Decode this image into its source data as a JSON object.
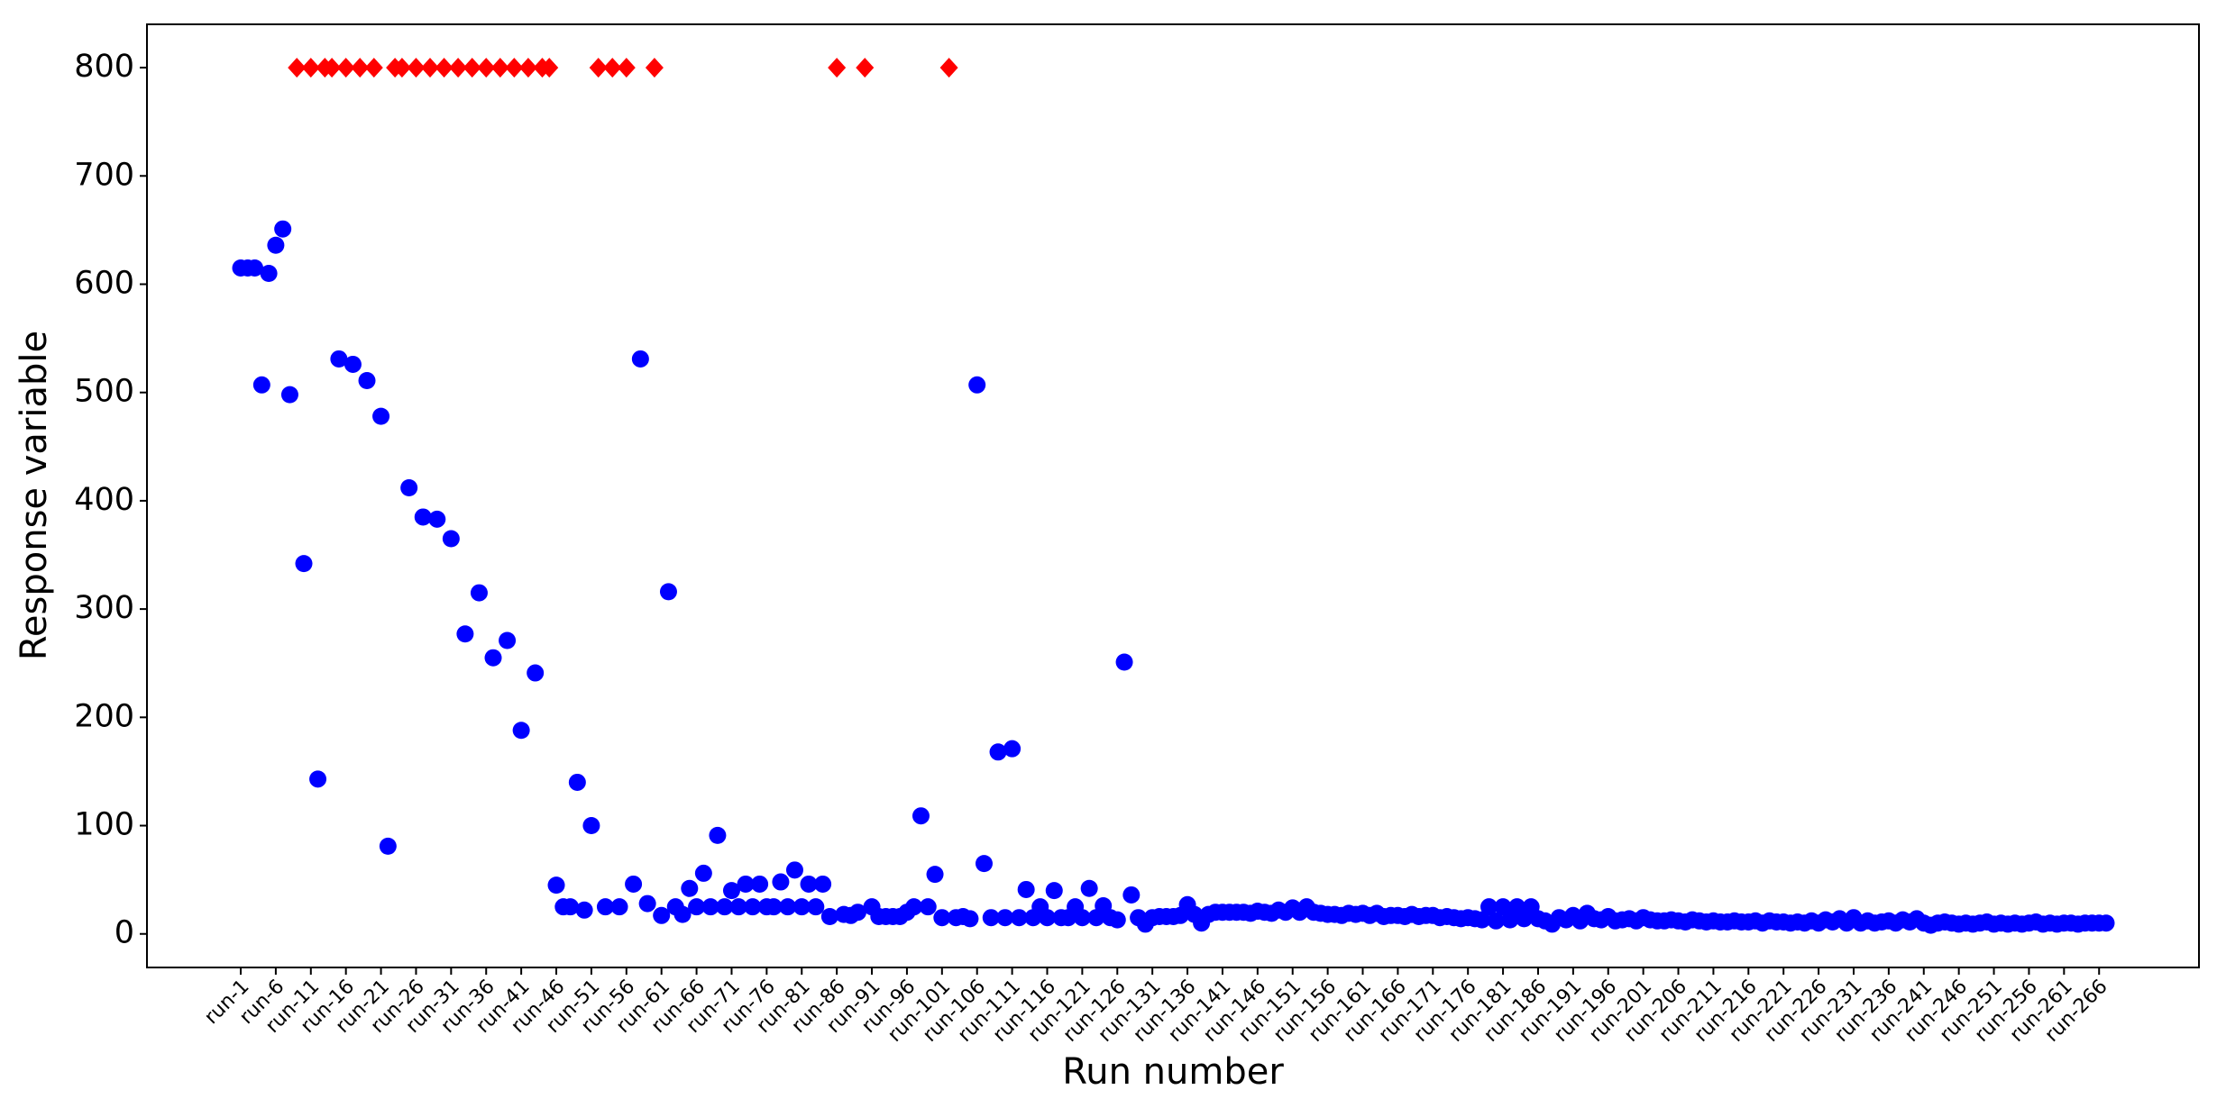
{
  "chart_data": {
    "type": "scatter",
    "xlabel": "Run number",
    "ylabel": "Response variable",
    "categories": [
      "run-1",
      null,
      null,
      null,
      null,
      "run-6",
      null,
      null,
      null,
      null,
      "run-11",
      null,
      null,
      null,
      null,
      "run-16",
      null,
      null,
      null,
      null,
      "run-21",
      null,
      null,
      null,
      null,
      "run-26",
      null,
      null,
      null,
      null,
      "run-31",
      null,
      null,
      null,
      null,
      "run-36",
      null,
      null,
      null,
      null,
      "run-41",
      null,
      null,
      null,
      null,
      "run-46",
      null,
      null,
      null,
      null,
      "run-51",
      null,
      null,
      null,
      null,
      "run-56",
      null,
      null,
      null,
      null,
      "run-61",
      null,
      null,
      null,
      null,
      "run-66",
      null,
      null,
      null,
      null,
      "run-71",
      null,
      null,
      null,
      null,
      "run-76",
      null,
      null,
      null,
      null,
      "run-81",
      null,
      null,
      null,
      null,
      "run-86",
      null,
      null,
      null,
      null,
      "run-91",
      null,
      null,
      null,
      null,
      "run-96",
      null,
      null,
      null,
      null,
      "run-101",
      null,
      null,
      null,
      null,
      "run-106",
      null,
      null,
      null,
      null,
      "run-111",
      null,
      null,
      null,
      null,
      "run-116",
      null,
      null,
      null,
      null,
      "run-121",
      null,
      null,
      null,
      null,
      "run-126",
      null,
      null,
      null,
      null,
      "run-131",
      null,
      null,
      null,
      null,
      "run-136",
      null,
      null,
      null,
      null,
      "run-141",
      null,
      null,
      null,
      null,
      "run-146",
      null,
      null,
      null,
      null,
      "run-151",
      null,
      null,
      null,
      null,
      "run-156",
      null,
      null,
      null,
      null,
      "run-161",
      null,
      null,
      null,
      null,
      "run-166",
      null,
      null,
      null,
      null,
      "run-171",
      null,
      null,
      null,
      null,
      "run-176",
      null,
      null,
      null,
      null,
      "run-181",
      null,
      null,
      null,
      null,
      "run-186",
      null,
      null,
      null,
      null,
      "run-191",
      null,
      null,
      null,
      null,
      "run-196",
      null,
      null,
      null,
      null,
      "run-201",
      null,
      null,
      null,
      null,
      "run-206",
      null,
      null,
      null,
      null,
      "run-211",
      null,
      null,
      null,
      null,
      "run-216",
      null,
      null,
      null,
      null,
      "run-221",
      null,
      null,
      null,
      null,
      "run-226",
      null,
      null,
      null,
      null,
      "run-231",
      null,
      null,
      null,
      null,
      "run-236",
      null,
      null,
      null,
      null,
      "run-241",
      null,
      null,
      null,
      null,
      "run-246",
      null,
      null,
      null,
      null,
      "run-251",
      null,
      null,
      null,
      null,
      "run-256",
      null,
      null,
      null,
      null,
      "run-261",
      null,
      null,
      null,
      null,
      "run-266",
      null
    ],
    "series": [
      {
        "color": "#0000ff",
        "marker": "circle",
        "values": [
          615,
          615,
          615,
          507,
          610,
          636,
          651,
          498,
          null,
          342,
          null,
          143,
          null,
          null,
          531,
          null,
          526,
          null,
          511,
          null,
          478,
          81,
          null,
          null,
          412,
          null,
          385,
          null,
          383,
          null,
          365,
          null,
          277,
          null,
          315,
          null,
          255,
          null,
          271,
          null,
          188,
          null,
          241,
          null,
          null,
          45,
          25,
          25,
          140,
          22,
          100,
          null,
          25,
          null,
          25,
          null,
          46,
          531,
          28,
          null,
          17,
          316,
          25,
          18,
          42,
          25,
          56,
          25,
          91,
          25,
          40,
          25,
          46,
          25,
          46,
          25,
          25,
          48,
          25,
          59,
          25,
          46,
          25,
          46,
          16,
          null,
          18,
          17,
          20,
          null,
          25,
          16,
          16,
          16,
          16,
          20,
          25,
          109,
          25,
          55,
          15,
          null,
          15,
          16,
          14,
          507,
          65,
          15,
          168,
          15,
          171,
          15,
          41,
          15,
          25,
          15,
          40,
          15,
          15,
          25,
          15,
          42,
          15,
          26,
          15,
          13,
          251,
          36,
          15,
          9,
          15,
          16,
          16,
          16,
          17,
          27,
          18,
          10,
          18,
          20,
          20,
          20,
          20,
          20,
          19,
          21,
          20,
          19,
          22,
          20,
          24,
          20,
          25,
          20,
          19,
          18,
          18,
          17,
          19,
          18,
          19,
          17,
          19,
          16,
          17,
          17,
          16,
          18,
          16,
          17,
          17,
          15,
          16,
          15,
          14,
          15,
          14,
          13,
          25,
          12,
          25,
          13,
          25,
          14,
          25,
          14,
          12,
          9,
          15,
          13,
          17,
          12,
          19,
          14,
          13,
          16,
          12,
          13,
          14,
          12,
          15,
          13,
          12,
          12,
          13,
          12,
          11,
          13,
          12,
          11,
          12,
          11,
          11,
          12,
          11,
          11,
          12,
          10,
          12,
          11,
          11,
          10,
          11,
          10,
          12,
          10,
          13,
          11,
          14,
          10,
          15,
          10,
          12,
          10,
          11,
          12,
          10,
          13,
          11,
          14,
          10,
          8,
          10,
          11,
          10,
          9,
          10,
          9,
          10,
          11,
          9,
          10,
          9,
          10,
          9,
          10,
          11,
          9,
          10,
          9,
          10,
          10,
          9,
          10,
          10,
          10,
          10
        ]
      },
      {
        "color": "#ff0000",
        "marker": "diamond",
        "values": [
          null,
          null,
          null,
          null,
          null,
          null,
          null,
          null,
          800,
          null,
          800,
          null,
          800,
          800,
          null,
          800,
          null,
          800,
          null,
          800,
          null,
          null,
          800,
          800,
          null,
          800,
          null,
          800,
          null,
          800,
          null,
          800,
          null,
          800,
          null,
          800,
          null,
          800,
          null,
          800,
          null,
          800,
          null,
          800,
          800,
          null,
          null,
          null,
          null,
          null,
          null,
          800,
          null,
          800,
          null,
          800,
          null,
          null,
          null,
          800,
          null,
          null,
          null,
          null,
          null,
          null,
          null,
          null,
          null,
          null,
          null,
          null,
          null,
          null,
          null,
          null,
          null,
          null,
          null,
          null,
          null,
          null,
          null,
          null,
          null,
          800,
          null,
          null,
          null,
          800,
          null,
          null,
          null,
          null,
          null,
          null,
          null,
          null,
          null,
          null,
          null,
          800,
          null,
          null,
          null,
          null,
          null,
          null,
          null,
          null,
          null,
          null,
          null,
          null,
          null,
          null,
          null,
          null,
          null,
          null,
          null,
          null,
          null,
          null,
          null,
          null,
          null,
          null,
          null,
          null,
          null,
          null,
          null,
          null,
          null,
          null,
          null,
          null,
          null,
          null,
          null,
          null,
          null,
          null,
          null,
          null,
          null,
          null,
          null,
          null,
          null,
          null,
          null,
          null,
          null,
          null,
          null,
          null,
          null,
          null,
          null,
          null,
          null,
          null,
          null,
          null,
          null,
          null,
          null,
          null,
          null,
          null,
          null,
          null,
          null,
          null,
          null,
          null,
          null,
          null,
          null,
          null,
          null,
          null,
          null,
          null,
          null,
          null,
          null,
          null,
          null,
          null,
          null,
          null,
          null,
          null,
          null,
          null,
          null,
          null,
          null,
          null,
          null,
          null,
          null,
          null,
          null,
          null,
          null,
          null,
          null,
          null,
          null,
          null,
          null,
          null,
          null,
          null,
          null,
          null,
          null,
          null,
          null,
          null,
          null,
          null,
          null,
          null,
          null,
          null,
          null,
          null,
          null,
          null,
          null,
          null,
          null,
          null,
          null,
          null,
          null,
          null,
          null,
          null,
          null,
          null,
          null,
          null,
          null,
          null,
          null,
          null,
          null,
          null,
          null,
          null,
          null,
          null,
          null,
          null,
          null,
          null,
          null,
          null,
          null,
          null,
          null
        ]
      }
    ],
    "ylim": [
      -31,
      840
    ],
    "yticks": [
      0,
      100,
      200,
      300,
      400,
      500,
      600,
      700,
      800
    ],
    "grid": false
  }
}
